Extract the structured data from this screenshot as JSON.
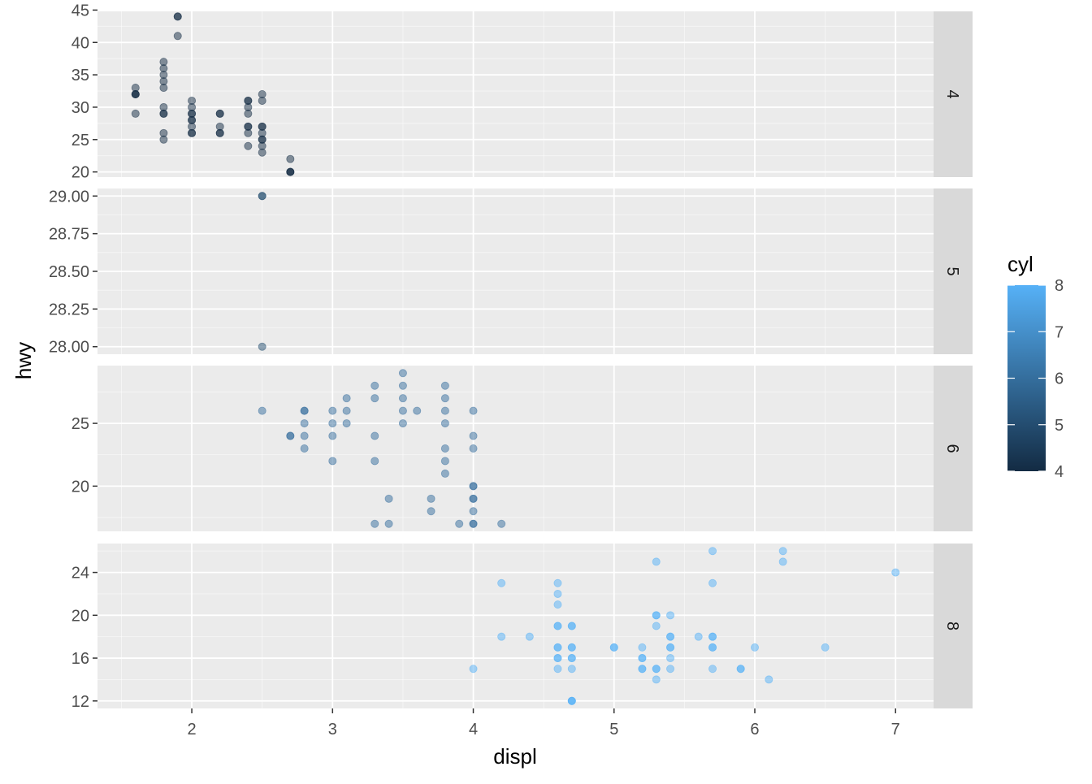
{
  "chart_data": {
    "type": "scatter",
    "facet_by": "cyl",
    "xlabel": "displ",
    "ylabel": "hwy",
    "x_ticks": [
      2,
      3,
      4,
      5,
      6,
      7
    ],
    "xlim": [
      1.33,
      7.27
    ],
    "legend": {
      "title": "cyl",
      "min": 4,
      "max": 8,
      "ticks": [
        4,
        5,
        6,
        7,
        8
      ],
      "low_color": "#132B43",
      "high_color": "#56B1F7",
      "placement": "right"
    },
    "point_alpha": 0.5,
    "panels": [
      {
        "strip_label": "4",
        "cyl": 4,
        "ylim": [
          19.2,
          44.8
        ],
        "y_ticks": [
          20,
          25,
          30,
          35,
          40,
          45
        ],
        "y_tick_labels": [
          "20",
          "25",
          "30",
          "35",
          "40",
          "45"
        ],
        "points": [
          [
            1.6,
            33
          ],
          [
            1.6,
            32
          ],
          [
            1.6,
            32
          ],
          [
            1.6,
            32
          ],
          [
            1.6,
            29
          ],
          [
            1.8,
            37
          ],
          [
            1.8,
            36
          ],
          [
            1.8,
            35
          ],
          [
            1.8,
            34
          ],
          [
            1.8,
            33
          ],
          [
            1.8,
            30
          ],
          [
            1.8,
            29
          ],
          [
            1.8,
            29
          ],
          [
            1.8,
            26
          ],
          [
            1.8,
            25
          ],
          [
            1.9,
            44
          ],
          [
            1.9,
            44
          ],
          [
            1.9,
            41
          ],
          [
            2.0,
            31
          ],
          [
            2.0,
            30
          ],
          [
            2.0,
            29
          ],
          [
            2.0,
            29
          ],
          [
            2.0,
            28
          ],
          [
            2.0,
            28
          ],
          [
            2.0,
            27
          ],
          [
            2.0,
            26
          ],
          [
            2.0,
            26
          ],
          [
            2.2,
            29
          ],
          [
            2.2,
            29
          ],
          [
            2.2,
            27
          ],
          [
            2.2,
            26
          ],
          [
            2.2,
            26
          ],
          [
            2.4,
            31
          ],
          [
            2.4,
            31
          ],
          [
            2.4,
            30
          ],
          [
            2.4,
            29
          ],
          [
            2.4,
            27
          ],
          [
            2.4,
            27
          ],
          [
            2.4,
            26
          ],
          [
            2.4,
            24
          ],
          [
            2.5,
            32
          ],
          [
            2.5,
            31
          ],
          [
            2.5,
            27
          ],
          [
            2.5,
            27
          ],
          [
            2.5,
            26
          ],
          [
            2.5,
            25
          ],
          [
            2.5,
            25
          ],
          [
            2.5,
            24
          ],
          [
            2.5,
            23
          ],
          [
            2.7,
            22
          ],
          [
            2.7,
            20
          ],
          [
            2.7,
            20
          ],
          [
            2.7,
            20
          ]
        ]
      },
      {
        "strip_label": "5",
        "cyl": 5,
        "ylim": [
          27.95,
          29.05
        ],
        "y_ticks": [
          28.0,
          28.25,
          28.5,
          28.75,
          29.0
        ],
        "y_tick_labels": [
          "28.00",
          "28.25",
          "28.50",
          "28.75",
          "29.00"
        ],
        "points": [
          [
            2.5,
            29
          ],
          [
            2.5,
            29
          ],
          [
            2.5,
            28
          ]
        ]
      },
      {
        "strip_label": "6",
        "cyl": 6,
        "ylim": [
          16.4,
          29.6
        ],
        "y_ticks": [
          20,
          25
        ],
        "y_tick_labels": [
          "20",
          "25"
        ],
        "points": [
          [
            2.5,
            26
          ],
          [
            2.7,
            24
          ],
          [
            2.7,
            24
          ],
          [
            2.8,
            26
          ],
          [
            2.8,
            26
          ],
          [
            2.8,
            25
          ],
          [
            2.8,
            24
          ],
          [
            2.8,
            23
          ],
          [
            3.0,
            26
          ],
          [
            3.0,
            25
          ],
          [
            3.0,
            24
          ],
          [
            3.0,
            22
          ],
          [
            3.1,
            27
          ],
          [
            3.1,
            26
          ],
          [
            3.1,
            25
          ],
          [
            3.3,
            28
          ],
          [
            3.3,
            27
          ],
          [
            3.3,
            24
          ],
          [
            3.3,
            22
          ],
          [
            3.3,
            17
          ],
          [
            3.4,
            19
          ],
          [
            3.4,
            17
          ],
          [
            3.5,
            29
          ],
          [
            3.5,
            28
          ],
          [
            3.5,
            27
          ],
          [
            3.5,
            26
          ],
          [
            3.5,
            25
          ],
          [
            3.6,
            26
          ],
          [
            3.7,
            19
          ],
          [
            3.7,
            18
          ],
          [
            3.8,
            28
          ],
          [
            3.8,
            27
          ],
          [
            3.8,
            26
          ],
          [
            3.8,
            25
          ],
          [
            3.8,
            23
          ],
          [
            3.8,
            22
          ],
          [
            3.8,
            21
          ],
          [
            3.9,
            17
          ],
          [
            4.0,
            26
          ],
          [
            4.0,
            24
          ],
          [
            4.0,
            23
          ],
          [
            4.0,
            20
          ],
          [
            4.0,
            20
          ],
          [
            4.0,
            19
          ],
          [
            4.0,
            19
          ],
          [
            4.0,
            18
          ],
          [
            4.0,
            17
          ],
          [
            4.0,
            17
          ],
          [
            4.2,
            17
          ]
        ]
      },
      {
        "strip_label": "8",
        "cyl": 8,
        "ylim": [
          11.3,
          26.7
        ],
        "y_ticks": [
          12,
          16,
          20,
          24
        ],
        "y_tick_labels": [
          "12",
          "16",
          "20",
          "24"
        ],
        "points": [
          [
            4.0,
            15
          ],
          [
            4.2,
            23
          ],
          [
            4.2,
            18
          ],
          [
            4.4,
            18
          ],
          [
            4.6,
            23
          ],
          [
            4.6,
            22
          ],
          [
            4.6,
            21
          ],
          [
            4.6,
            19
          ],
          [
            4.6,
            19
          ],
          [
            4.6,
            17
          ],
          [
            4.6,
            17
          ],
          [
            4.6,
            16
          ],
          [
            4.6,
            16
          ],
          [
            4.6,
            15
          ],
          [
            4.7,
            19
          ],
          [
            4.7,
            19
          ],
          [
            4.7,
            17
          ],
          [
            4.7,
            17
          ],
          [
            4.7,
            16
          ],
          [
            4.7,
            16
          ],
          [
            4.7,
            15
          ],
          [
            4.7,
            12
          ],
          [
            4.7,
            12
          ],
          [
            4.7,
            12
          ],
          [
            5.0,
            17
          ],
          [
            5.0,
            17
          ],
          [
            5.2,
            17
          ],
          [
            5.2,
            16
          ],
          [
            5.2,
            16
          ],
          [
            5.2,
            15
          ],
          [
            5.2,
            15
          ],
          [
            5.3,
            25
          ],
          [
            5.3,
            20
          ],
          [
            5.3,
            20
          ],
          [
            5.3,
            19
          ],
          [
            5.3,
            15
          ],
          [
            5.3,
            15
          ],
          [
            5.3,
            14
          ],
          [
            5.4,
            20
          ],
          [
            5.4,
            18
          ],
          [
            5.4,
            18
          ],
          [
            5.4,
            17
          ],
          [
            5.4,
            17
          ],
          [
            5.4,
            16
          ],
          [
            5.4,
            15
          ],
          [
            5.6,
            18
          ],
          [
            5.7,
            26
          ],
          [
            5.7,
            23
          ],
          [
            5.7,
            18
          ],
          [
            5.7,
            18
          ],
          [
            5.7,
            17
          ],
          [
            5.7,
            17
          ],
          [
            5.7,
            15
          ],
          [
            5.9,
            15
          ],
          [
            5.9,
            15
          ],
          [
            6.0,
            17
          ],
          [
            6.1,
            14
          ],
          [
            6.2,
            26
          ],
          [
            6.2,
            25
          ],
          [
            6.5,
            17
          ],
          [
            7.0,
            24
          ]
        ]
      }
    ]
  }
}
